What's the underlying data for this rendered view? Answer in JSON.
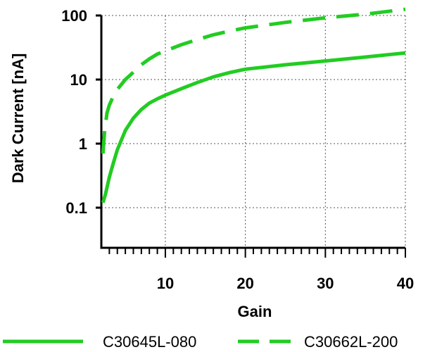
{
  "chart_data": {
    "type": "line",
    "title": "",
    "xlabel": "Gain",
    "ylabel": "Dark Current [nA]",
    "xlim": [
      2,
      40
    ],
    "ylim": [
      0.05,
      130
    ],
    "yscale": "log",
    "grid": true,
    "legend_position": "bottom",
    "x_ticks": [
      {
        "value": 10,
        "label": "10"
      },
      {
        "value": 20,
        "label": "20"
      },
      {
        "value": 30,
        "label": "30"
      },
      {
        "value": 40,
        "label": "40"
      }
    ],
    "y_ticks": [
      {
        "value": 0.1,
        "label": "0.1"
      },
      {
        "value": 1,
        "label": "1"
      },
      {
        "value": 10,
        "label": "10"
      },
      {
        "value": 100,
        "label": "100"
      }
    ],
    "line_color": "#22cc22",
    "series": [
      {
        "name": "C30645L-080",
        "style": "solid",
        "x": [
          2.2,
          2.5,
          3,
          3.5,
          4,
          5,
          6,
          7,
          8,
          9,
          10,
          12,
          14,
          16,
          18,
          20,
          25,
          30,
          35,
          40
        ],
        "y": [
          0.12,
          0.16,
          0.3,
          0.5,
          0.8,
          1.6,
          2.5,
          3.4,
          4.3,
          5.0,
          5.7,
          7.2,
          9.0,
          11.0,
          12.8,
          14.5,
          17.0,
          19.5,
          22.5,
          26.0
        ]
      },
      {
        "name": "C30662L-200",
        "style": "dashed",
        "x": [
          2.2,
          2.4,
          2.7,
          3,
          3.5,
          4,
          5,
          6,
          7,
          8,
          9,
          10,
          12,
          14,
          16,
          18,
          20,
          25,
          30,
          35,
          40
        ],
        "y": [
          0.7,
          1.5,
          3.0,
          4.0,
          5.5,
          7.0,
          10.0,
          13.0,
          17.0,
          21.0,
          25.0,
          28.0,
          35.0,
          42.0,
          50.0,
          57.0,
          64.0,
          78.0,
          92.0,
          105.0,
          125.0
        ]
      }
    ]
  }
}
